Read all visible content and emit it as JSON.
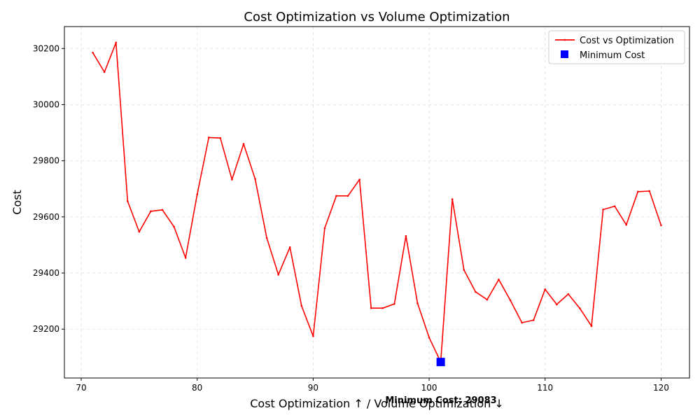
{
  "chart_data": {
    "type": "line",
    "title": "Cost Optimization vs Volume Optimization",
    "xlabel": "Cost Optimization ↑ / Volume Optimization ↓",
    "ylabel": "Cost",
    "xlim": [
      68.55,
      122.45
    ],
    "ylim": [
      29026,
      30278
    ],
    "xticks": [
      70,
      80,
      90,
      100,
      110,
      120
    ],
    "yticks": [
      29200,
      29400,
      29600,
      29800,
      30000,
      30200
    ],
    "grid": true,
    "legend_position": "top-right",
    "series": [
      {
        "name": "Cost vs Optimization",
        "color": "#ff0000",
        "x": [
          71,
          72,
          73,
          74,
          75,
          76,
          77,
          78,
          79,
          80,
          81,
          82,
          83,
          84,
          85,
          86,
          87,
          88,
          89,
          90,
          91,
          92,
          93,
          94,
          95,
          96,
          97,
          98,
          99,
          100,
          101,
          102,
          103,
          104,
          105,
          106,
          107,
          108,
          109,
          110,
          111,
          112,
          113,
          114,
          115,
          116,
          117,
          118,
          119,
          120
        ],
        "y": [
          30185,
          30116,
          30221,
          29656,
          29547,
          29620,
          29625,
          29565,
          29454,
          29680,
          29883,
          29881,
          29733,
          29860,
          29735,
          29525,
          29394,
          29492,
          29283,
          29175,
          29560,
          29675,
          29675,
          29733,
          29275,
          29275,
          29290,
          29532,
          29292,
          29170,
          29083,
          29663,
          29411,
          29333,
          29305,
          29377,
          29303,
          29223,
          29232,
          29342,
          29288,
          29325,
          29274,
          29211,
          29626,
          29638,
          29572,
          29690,
          29692,
          29570
        ]
      }
    ],
    "minimum": {
      "name": "Minimum Cost",
      "color": "#0000ff",
      "x": 101,
      "y": 29083,
      "label": "Minimum Cost: 29083"
    }
  }
}
